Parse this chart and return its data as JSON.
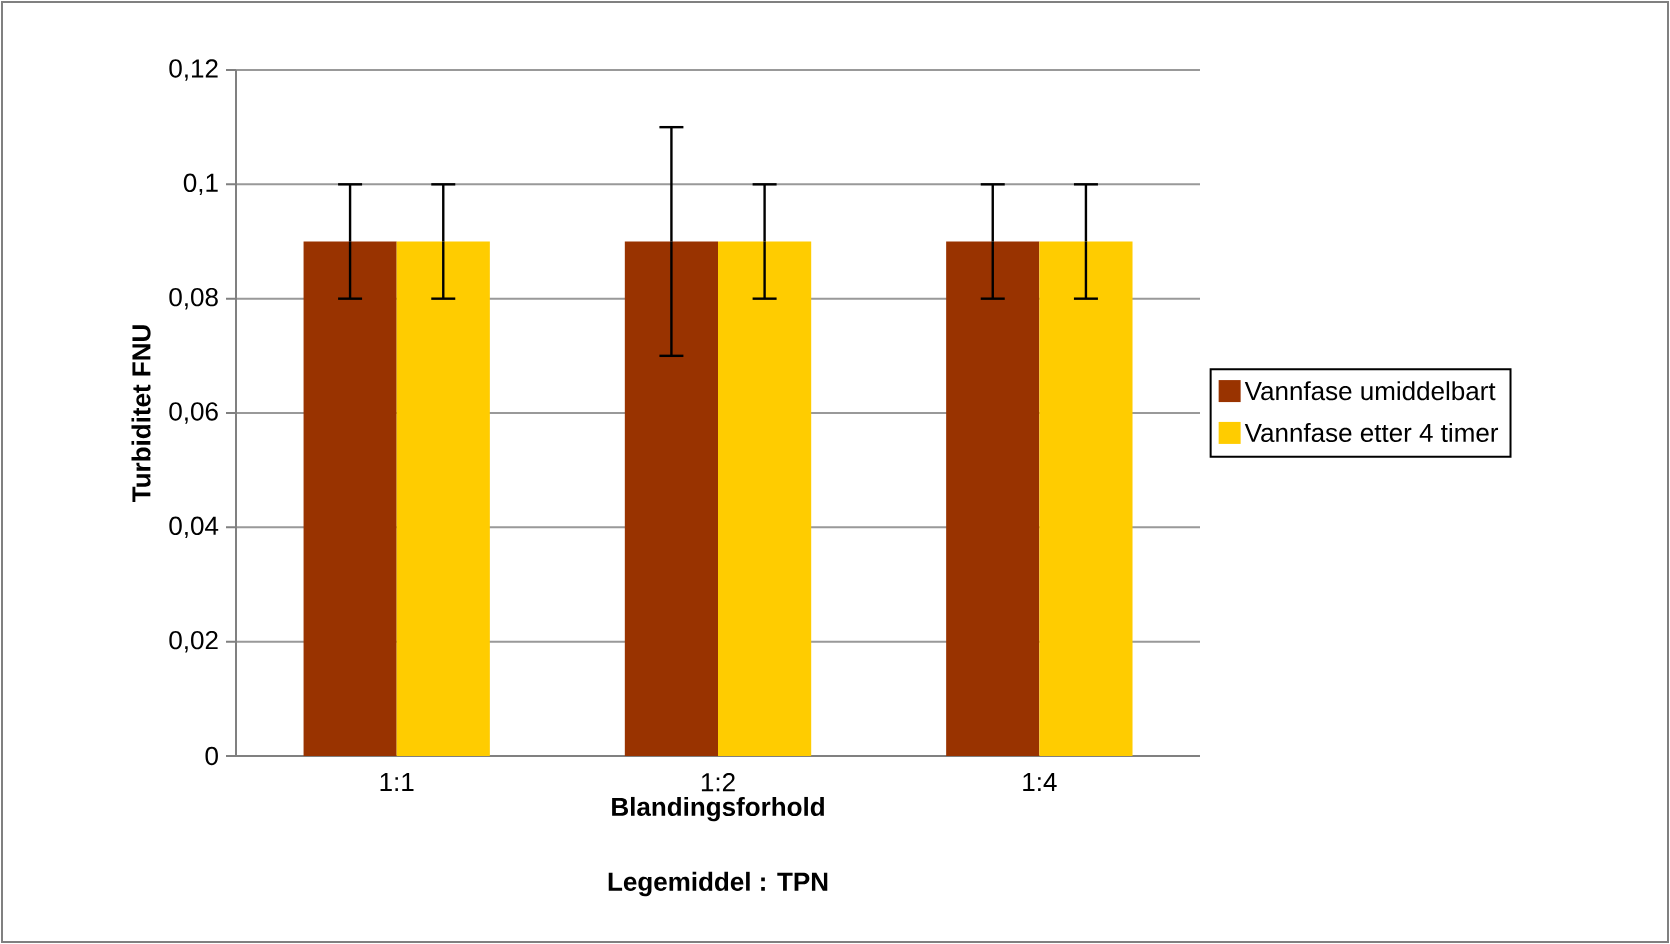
{
  "chart_data": {
    "type": "bar",
    "xlabel": "Blandingsforhold",
    "ylabel": "Turbiditet FNU",
    "annotations": [
      "Legemiddel : TPN"
    ],
    "categories": [
      "1:1",
      "1:2",
      "1:4"
    ],
    "series": [
      {
        "name": "Vannfase umiddelbart",
        "color": "#993300",
        "values": [
          0.09,
          0.09,
          0.09
        ],
        "errors": [
          0.01,
          0.02,
          0.01
        ]
      },
      {
        "name": "Vannfase etter 4 timer",
        "color": "#ffcc00",
        "values": [
          0.09,
          0.09,
          0.09
        ],
        "errors": [
          0.01,
          0.01,
          0.01
        ]
      }
    ],
    "ylim": [
      0,
      0.12
    ],
    "yticks": [
      0,
      {
        "value": 0.02,
        "label": "0,02"
      },
      {
        "value": 0.04,
        "label": "0,04"
      },
      {
        "value": 0.06,
        "label": "0,06"
      },
      {
        "value": 0.08,
        "label": "0,08"
      },
      {
        "value": 0.1,
        "label": "0,1"
      },
      {
        "value": 0.12,
        "label": "0,12"
      }
    ],
    "grid": "y",
    "legend": "right"
  }
}
